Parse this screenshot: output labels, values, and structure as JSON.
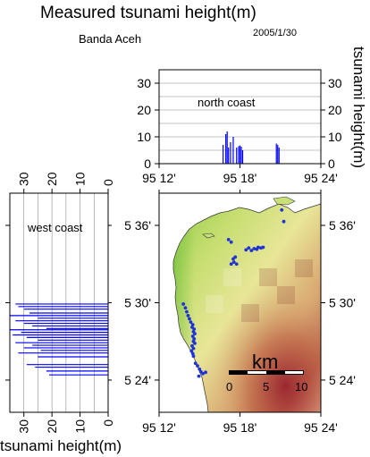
{
  "title": "Measured tsunami height(m)",
  "location": "Banda Aceh",
  "date": "2005/1/30",
  "colors": {
    "bars": "#0000ff",
    "points": "#1e32d8",
    "grid": "#8c8c8c",
    "land_low": "#86c83c",
    "land_mid": "#e6e696",
    "land_high": "#a02830",
    "sea": "#ffffff"
  },
  "chart_data": [
    {
      "id": "north",
      "type": "bar",
      "title": "north coast",
      "ylabel": "tsunami height(m)",
      "ylim": [
        0,
        35
      ],
      "yticks": [
        0,
        10,
        20,
        30
      ],
      "xlim": [
        12,
        24
      ],
      "xticks": [
        12,
        18,
        24
      ],
      "xticklabels": [
        "95 12'",
        "95 18'",
        "95 24'"
      ],
      "grid": true,
      "x": [
        16.75,
        16.95,
        17.05,
        17.15,
        17.3,
        17.5,
        17.75,
        17.9,
        18.0,
        18.1,
        18.2,
        20.7,
        20.8,
        20.9
      ],
      "values": [
        7,
        11,
        12,
        6,
        8,
        10,
        6,
        6.5,
        6.8,
        6.3,
        5,
        7.5,
        7,
        6
      ]
    },
    {
      "id": "west",
      "type": "bar",
      "orientation": "horizontal",
      "title": "west coast",
      "xlabel": "tsunami height(m)",
      "xlim": [
        0,
        35
      ],
      "xticks": [
        0,
        10,
        20,
        30
      ],
      "ylim": [
        21.5,
        38.5
      ],
      "yticks": [
        24,
        30,
        36
      ],
      "yticklabels": [
        "5 24'",
        "5 30'",
        "5 36'"
      ],
      "grid": true,
      "y": [
        29.9,
        29.7,
        29.5,
        29.2,
        29.0,
        28.8,
        28.6,
        28.4,
        28.2,
        28.0,
        27.9,
        27.7,
        27.5,
        27.3,
        27.1,
        26.9,
        26.7,
        26.5,
        26.3,
        26.1,
        25.8,
        25.2,
        25.0,
        24.7,
        24.4
      ],
      "values": [
        33,
        32,
        30,
        28,
        35,
        25,
        33,
        30,
        27,
        22,
        35,
        31,
        34,
        29,
        25,
        33,
        27,
        30,
        24,
        32,
        25,
        29,
        26,
        22,
        21
      ]
    },
    {
      "id": "map",
      "type": "scatter",
      "xlim": [
        12,
        24
      ],
      "ylim": [
        21.5,
        38.5
      ],
      "xticks": [
        12,
        18,
        24
      ],
      "xticklabels": [
        "95 12'",
        "95 18'",
        "95 24'"
      ],
      "yticks": [
        24,
        30,
        36
      ],
      "yticklabels": [
        "5 24'",
        "5 30'",
        "5 36'"
      ],
      "scale_bar": {
        "unit": "km",
        "ticks": [
          "0",
          "5",
          "10"
        ]
      },
      "points": [
        [
          21.1,
          37.2
        ],
        [
          21.25,
          36.3
        ],
        [
          17.15,
          34.9
        ],
        [
          17.35,
          34.7
        ],
        [
          18.45,
          34.1
        ],
        [
          18.65,
          34.25
        ],
        [
          18.85,
          34.05
        ],
        [
          19.05,
          34.2
        ],
        [
          19.25,
          34.15
        ],
        [
          19.35,
          34.3
        ],
        [
          19.55,
          34.25
        ],
        [
          19.72,
          34.3
        ],
        [
          17.65,
          33.55
        ],
        [
          17.5,
          33.4
        ],
        [
          17.55,
          33.15
        ],
        [
          17.75,
          33.0
        ],
        [
          17.35,
          33.0
        ],
        [
          13.8,
          29.9
        ],
        [
          13.95,
          29.6
        ],
        [
          14.05,
          29.3
        ],
        [
          14.15,
          29.0
        ],
        [
          14.25,
          28.75
        ],
        [
          14.35,
          28.5
        ],
        [
          14.5,
          28.3
        ],
        [
          14.45,
          28.1
        ],
        [
          14.6,
          27.95
        ],
        [
          14.55,
          27.75
        ],
        [
          14.65,
          27.6
        ],
        [
          14.5,
          27.4
        ],
        [
          14.6,
          27.2
        ],
        [
          14.55,
          27.0
        ],
        [
          14.65,
          26.85
        ],
        [
          14.45,
          26.65
        ],
        [
          14.55,
          26.45
        ],
        [
          14.4,
          26.25
        ],
        [
          14.5,
          26.05
        ],
        [
          14.55,
          25.85
        ],
        [
          14.7,
          25.3
        ],
        [
          14.85,
          25.1
        ],
        [
          15.0,
          24.85
        ],
        [
          15.1,
          24.65
        ],
        [
          15.25,
          24.5
        ],
        [
          15.45,
          24.6
        ],
        [
          14.95,
          24.3
        ]
      ]
    }
  ]
}
